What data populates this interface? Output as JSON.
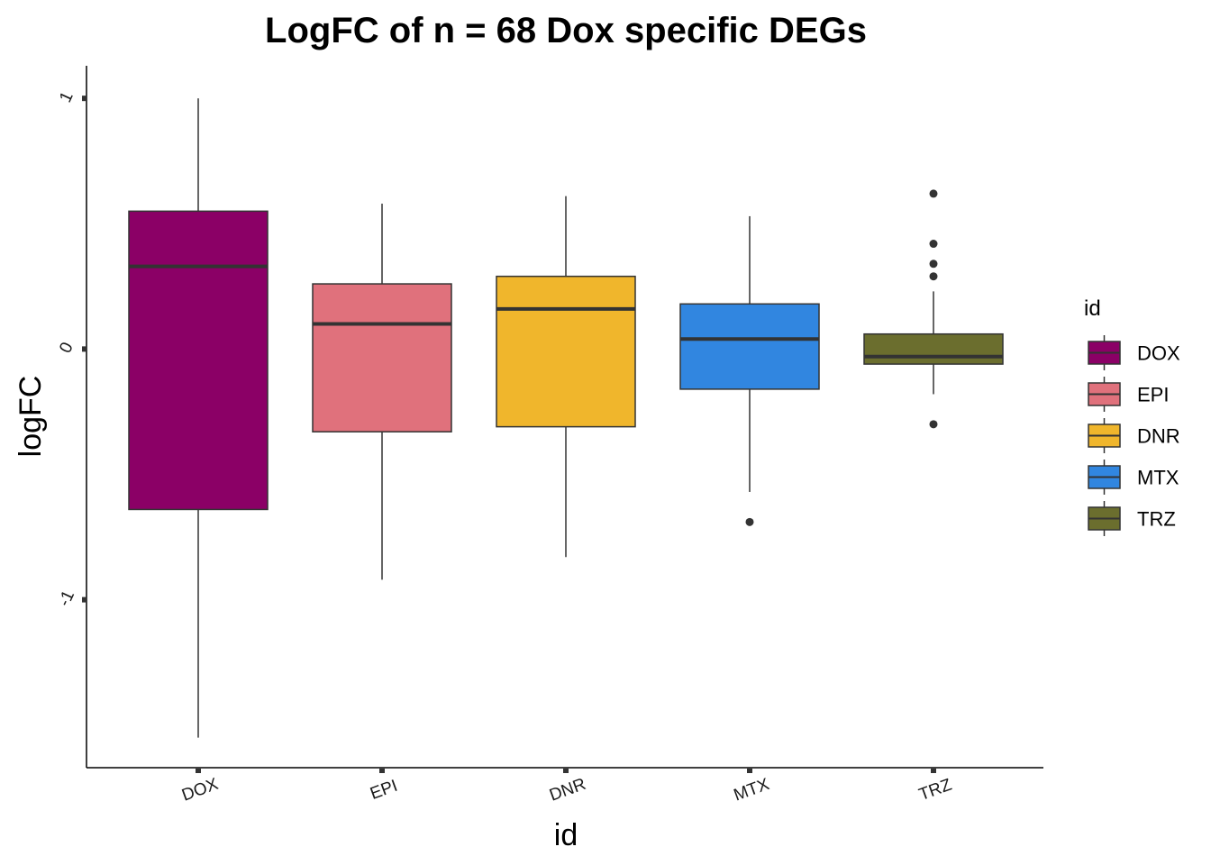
{
  "chart_data": {
    "type": "boxplot",
    "title": "LogFC of n = 68 Dox specific DEGs",
    "xlabel": "id",
    "ylabel": "logFC",
    "ylim": [
      -1.67,
      1.13
    ],
    "y_ticks": [
      {
        "value": 1,
        "label": "1"
      },
      {
        "value": 0,
        "label": "0"
      },
      {
        "value": -1,
        "label": "-1"
      }
    ],
    "grid": false,
    "legend": {
      "title": "id",
      "position": "right",
      "entries": [
        {
          "label": "DOX",
          "color": "#8B0066"
        },
        {
          "label": "EPI",
          "color": "#E0717C"
        },
        {
          "label": "DNR",
          "color": "#F0B62C"
        },
        {
          "label": "MTX",
          "color": "#3186E0"
        },
        {
          "label": "TRZ",
          "color": "#6B6E2E"
        }
      ]
    },
    "categories": [
      "DOX",
      "EPI",
      "DNR",
      "MTX",
      "TRZ"
    ],
    "series": [
      {
        "name": "DOX",
        "color": "#8B0066",
        "whisker_low": -1.55,
        "q1": -0.64,
        "median": 0.33,
        "q3": 0.55,
        "whisker_high": 1.0,
        "outliers": []
      },
      {
        "name": "EPI",
        "color": "#E0717C",
        "whisker_low": -0.92,
        "q1": -0.33,
        "median": 0.1,
        "q3": 0.26,
        "whisker_high": 0.58,
        "outliers": []
      },
      {
        "name": "DNR",
        "color": "#F0B62C",
        "whisker_low": -0.83,
        "q1": -0.31,
        "median": 0.16,
        "q3": 0.29,
        "whisker_high": 0.61,
        "outliers": []
      },
      {
        "name": "MTX",
        "color": "#3186E0",
        "whisker_low": -0.57,
        "q1": -0.16,
        "median": 0.04,
        "q3": 0.18,
        "whisker_high": 0.53,
        "outliers": [
          -0.69
        ]
      },
      {
        "name": "TRZ",
        "color": "#6B6E2E",
        "whisker_low": -0.18,
        "q1": -0.06,
        "median": -0.03,
        "q3": 0.06,
        "whisker_high": 0.23,
        "outliers": [
          0.62,
          0.42,
          0.34,
          0.29,
          -0.3
        ]
      }
    ]
  }
}
